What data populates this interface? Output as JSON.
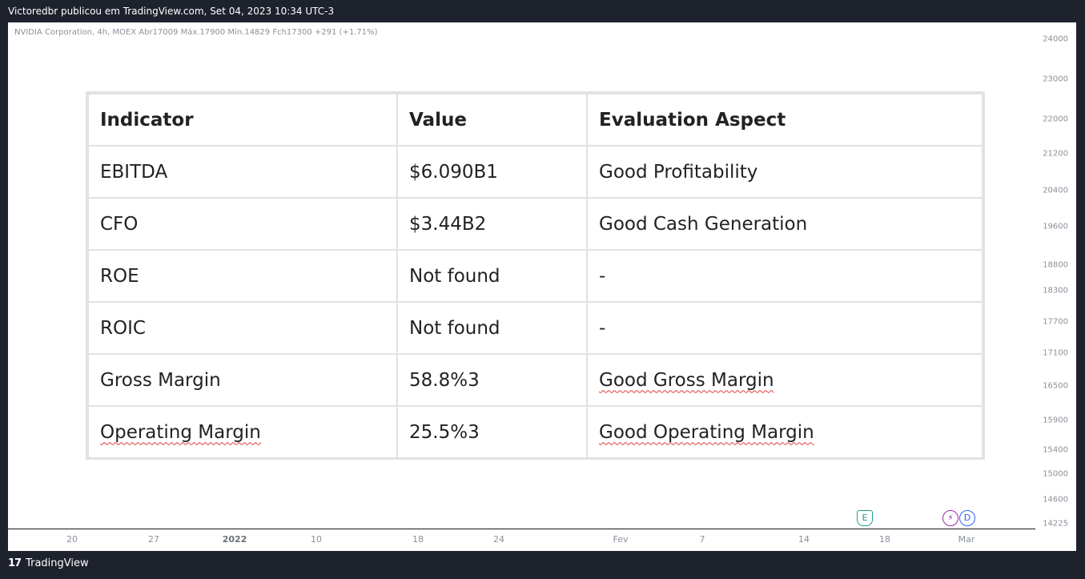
{
  "header": {
    "publish_line": "Victoredbr publicou em TradingView.com, Set 04, 2023 10:34 UTC-3"
  },
  "chart": {
    "symbol_info": "NVIDIA Corporation, 4h, MOEX  Abr17009  Máx.17900  Mín.14829  Fch17300  +291 (+1.71%)",
    "price_labels": [
      "24000",
      "23000",
      "22000",
      "21200",
      "20400",
      "19600",
      "18800",
      "18300",
      "17700",
      "17100",
      "16500",
      "15900",
      "15400",
      "15000",
      "14600",
      "14225"
    ],
    "time_labels": [
      "20",
      "27",
      "2022",
      "10",
      "18",
      "24",
      "Fev",
      "7",
      "14",
      "18",
      "Mar"
    ],
    "events": {
      "earnings": "E",
      "split": "⚡",
      "dividend": "D"
    }
  },
  "table": {
    "headers": [
      "Indicator",
      "Value",
      "Evaluation Aspect"
    ],
    "rows": [
      [
        "EBITDA",
        "$6.090B1",
        "Good Profitability"
      ],
      [
        "CFO",
        "$3.44B2",
        "Good Cash Generation"
      ],
      [
        "ROE",
        "Not found",
        "-"
      ],
      [
        "ROIC",
        "Not found",
        "-"
      ],
      [
        "Gross Margin",
        "58.8%3",
        "Good Gross Margin"
      ],
      [
        "Operating Margin",
        "25.5%3",
        "Good Operating Margin"
      ]
    ]
  },
  "footer": {
    "brand": "TradingView",
    "logo_mark": "17"
  },
  "colors": {
    "background": "#1e222d",
    "chart_bg": "#ffffff",
    "axis_text": "#8a8f99",
    "spellcheck": "#e03b3b"
  }
}
